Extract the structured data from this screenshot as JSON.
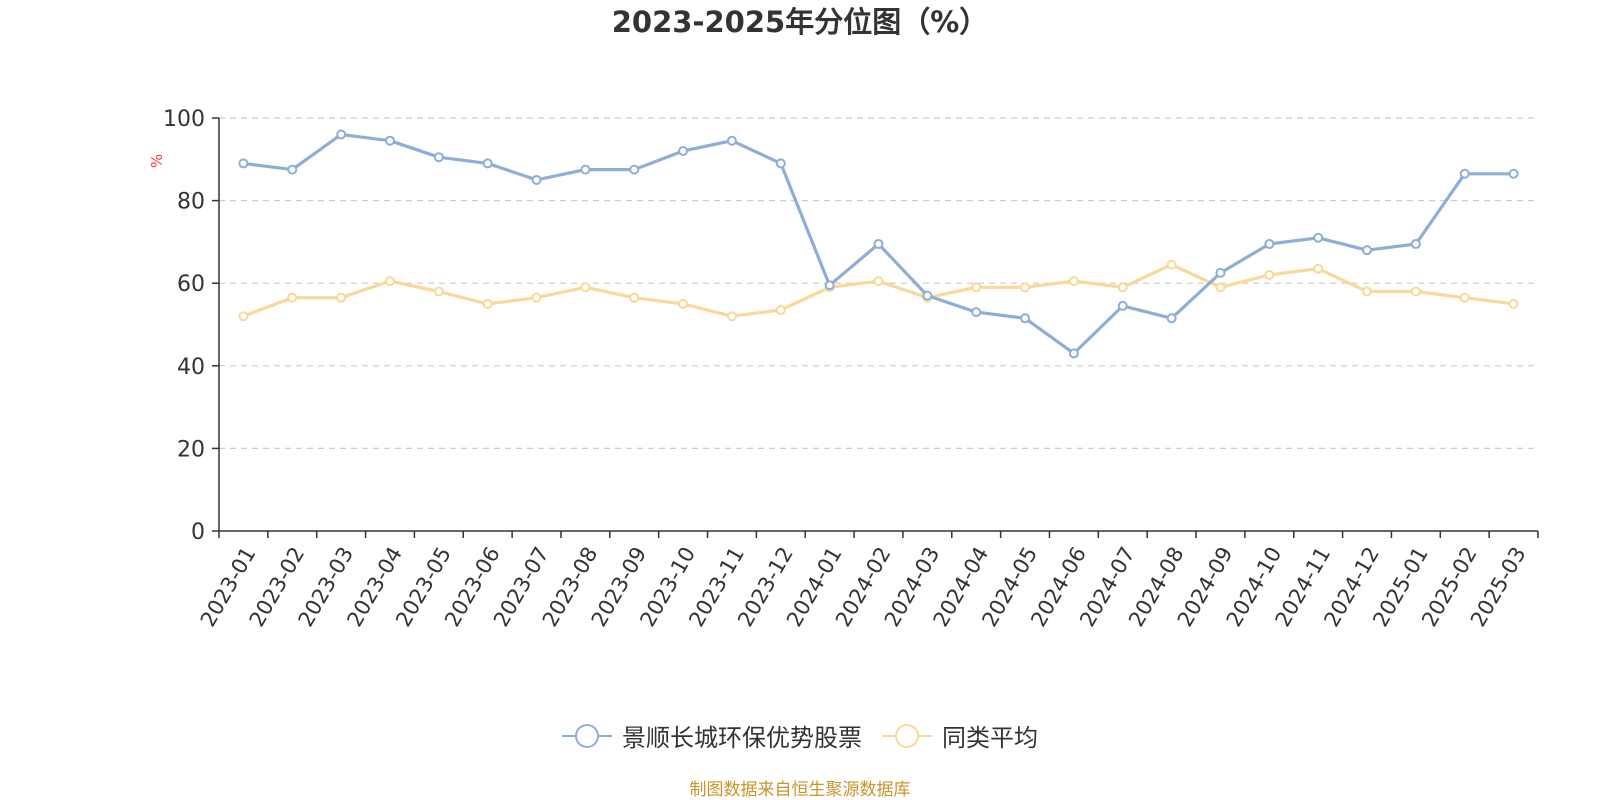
{
  "chart_data": {
    "type": "line",
    "title": "2023-2025年分位图（%）",
    "ylabel": "%",
    "xlabel": "",
    "ylim": [
      0,
      100
    ],
    "yticks": [
      0,
      20,
      40,
      60,
      80,
      100
    ],
    "grid": true,
    "legend_position": "bottom-center",
    "categories": [
      "2023-01",
      "2023-02",
      "2023-03",
      "2023-04",
      "2023-05",
      "2023-06",
      "2023-07",
      "2023-08",
      "2023-09",
      "2023-10",
      "2023-11",
      "2023-12",
      "2024-01",
      "2024-02",
      "2024-03",
      "2024-04",
      "2024-05",
      "2024-06",
      "2024-07",
      "2024-08",
      "2024-09",
      "2024-10",
      "2024-11",
      "2024-12",
      "2025-01",
      "2025-02",
      "2025-03"
    ],
    "series": [
      {
        "name": "景顺长城环保优势股票",
        "color": "#8eadd9",
        "values": [
          89,
          87.5,
          96,
          94.5,
          90.5,
          89,
          85,
          87.5,
          87.5,
          92,
          94.5,
          89,
          59.5,
          69.5,
          57,
          53,
          51.5,
          43,
          54.5,
          51.5,
          62.5,
          69.5,
          71,
          68,
          69.5,
          86.5,
          86.5
        ]
      },
      {
        "name": "同类平均",
        "color": "#fad898",
        "values": [
          52,
          56.5,
          56.5,
          60.5,
          58,
          55,
          56.5,
          59,
          56.5,
          55,
          52,
          53.5,
          59,
          60.5,
          56.5,
          59,
          59,
          60.5,
          59,
          64.5,
          59,
          62,
          63.5,
          58,
          58,
          56.5,
          55
        ]
      }
    ]
  },
  "footer": {
    "source": "制图数据来自恒生聚源数据库"
  }
}
